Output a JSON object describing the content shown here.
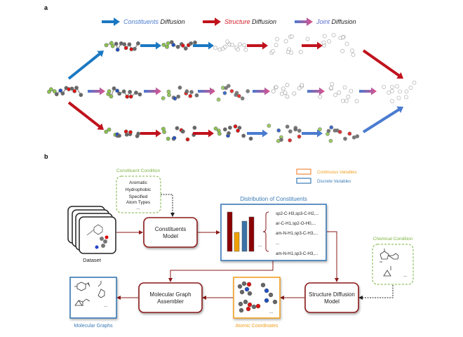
{
  "panel_a": {
    "label": "a",
    "legend": [
      {
        "highlight": "Constituents",
        "rest": " Diffusion",
        "color": "#1a78c2"
      },
      {
        "highlight": "Structure",
        "rest": " Diffusion",
        "color": "#c0121c"
      },
      {
        "highlight": "Joint",
        "rest": " Diffusion",
        "color": "#5b6fcf"
      }
    ]
  },
  "panel_b": {
    "label": "b",
    "constituent_condition": {
      "title": "Constituent Condition",
      "items": [
        "Aromatic",
        "Hydrophobic",
        "Specified",
        "Atom Types",
        "..."
      ]
    },
    "dataset_label": "Dataset",
    "constituents_model": [
      "Constituents",
      "Model"
    ],
    "legend": {
      "continuous": "Continuous Variables",
      "discrete": "Discrete Variables"
    },
    "distribution": {
      "title": "Distribution of Constituents",
      "ellipsis": "...",
      "items": [
        "sp2-C-H3,sp3-C-H2,...",
        "ar-C-H1,sp2-O-H0,...",
        "am-N-H1,sp3-C-H3,...",
        "...",
        "am-N-H1,sp3-C-H3,..."
      ]
    },
    "chemical_condition": {
      "title": "Chemical Condition",
      "ellipsis": "..."
    },
    "structure_model": [
      "Structure Diffusion",
      "Model"
    ],
    "atomic_coordinates": {
      "title": "Atomic Coordinates",
      "ellipsis": "..."
    },
    "assembler": [
      "Molecular Graph",
      "Assembler"
    ],
    "molecular_graphs": {
      "title": "Molecular Graphs",
      "ellipsis": "..."
    },
    "colors": {
      "red": "#8b1a1a",
      "blue": "#3a7ab5",
      "orange": "#f0a020",
      "green": "#7cb342"
    }
  }
}
